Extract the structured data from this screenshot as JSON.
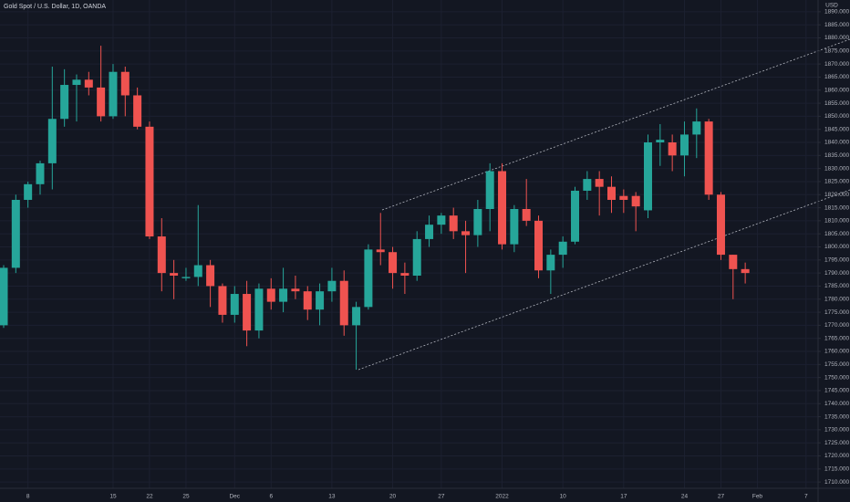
{
  "chart_data": {
    "type": "candlestick",
    "title": "Gold Spot / U.S. Dollar, 1D, OANDA",
    "currency": "USD",
    "up_color": "#26a69a",
    "down_color": "#ef5350",
    "grid": true,
    "categories": [
      null,
      null,
      "8",
      null,
      null,
      null,
      null,
      null,
      null,
      "15",
      null,
      null,
      "22",
      null,
      null,
      "25",
      null,
      null,
      null,
      "Dec",
      null,
      null,
      "6",
      null,
      null,
      null,
      null,
      "13",
      null,
      null,
      null,
      null,
      "20",
      null,
      null,
      null,
      "27",
      null,
      null,
      null,
      null,
      "2022",
      null,
      null,
      null,
      null,
      "10",
      null,
      null,
      null,
      null,
      "17",
      null,
      null,
      null,
      null,
      "24",
      null,
      null,
      "27",
      null,
      null,
      "Feb",
      null,
      null,
      null,
      "7"
    ],
    "open": [
      1770,
      1792,
      1818,
      1824,
      1832,
      1849,
      1862,
      1864,
      1861,
      1850,
      1867,
      1858,
      1846,
      1804,
      1790,
      1788,
      1788.5,
      1793,
      1785,
      1774,
      1782,
      1768,
      1784,
      1779,
      1784,
      1783,
      1776,
      1783,
      1787,
      1770,
      1777,
      1799,
      1798,
      1790,
      1789,
      1803,
      1808.5,
      1812,
      1806,
      1804.5,
      1814.5,
      1829,
      1801,
      1814.5,
      1810,
      1791,
      1797,
      1802,
      1821.5,
      1826,
      1823,
      1819.5,
      1819.5,
      1814,
      1840,
      1840,
      1835,
      1843,
      1848,
      1820,
      1797,
      1791.5,
      null,
      null,
      null,
      null,
      null
    ],
    "high": [
      1793,
      1820,
      1825,
      1833,
      1869,
      1868,
      1866,
      1867,
      1877,
      1870,
      1869,
      1861,
      1848,
      1811,
      1795,
      1792,
      1816,
      1795,
      1786,
      1785,
      1787,
      1786,
      1788,
      1792,
      1789,
      1785,
      1786,
      1792,
      1791,
      1779,
      1801,
      1813,
      1800,
      1794,
      1806,
      1812,
      1813,
      1815,
      1810,
      1818,
      1832,
      1832,
      1816,
      1826,
      1812,
      1799,
      1804,
      1823,
      1829,
      1829,
      1827,
      1822,
      1821,
      1843,
      1847,
      1843,
      1848,
      1853,
      1849,
      1821,
      1797,
      1794,
      null,
      null,
      null,
      null,
      null
    ],
    "low": [
      1769,
      1790,
      1815,
      1820,
      1822,
      1846,
      1848,
      1858,
      1848,
      1849,
      1850,
      1845,
      1803,
      1783,
      1780,
      1787,
      1785,
      1777,
      1771,
      1771,
      1762,
      1765,
      1776,
      1775,
      1780,
      1772,
      1770,
      1779,
      1766,
      1753,
      1776,
      1793,
      1784,
      1782,
      1787,
      1800,
      1805,
      1803,
      1790,
      1800,
      1806,
      1799,
      1798,
      1808,
      1788,
      1782,
      1792,
      1801,
      1818,
      1812,
      1813,
      1813,
      1806,
      1811,
      1831,
      1829,
      1827,
      1834,
      1818,
      1795,
      1780,
      1786,
      null,
      null,
      null,
      null,
      null
    ],
    "close": [
      1792,
      1818,
      1824,
      1832,
      1849,
      1862,
      1864,
      1861,
      1850,
      1867,
      1858,
      1846,
      1804,
      1790,
      1789,
      1788.5,
      1793,
      1785,
      1774,
      1782,
      1768,
      1784,
      1779,
      1784,
      1783,
      1776,
      1783,
      1787,
      1770,
      1777,
      1799,
      1798,
      1790,
      1789,
      1803,
      1808.5,
      1812,
      1806,
      1804.5,
      1814.5,
      1829,
      1801,
      1814.5,
      1810,
      1791,
      1797,
      1802,
      1821.5,
      1826,
      1823,
      1818,
      1818,
      1815.5,
      1840,
      1841,
      1835,
      1843,
      1848,
      1820,
      1797,
      1791.5,
      1790,
      null,
      null,
      null,
      null,
      null
    ],
    "ylim": [
      1707.6,
      1894.5
    ],
    "yticks": [
      {
        "value": 1710,
        "label": "1710.000"
      },
      {
        "value": 1715,
        "label": "1715.000"
      },
      {
        "value": 1720,
        "label": "1720.000"
      },
      {
        "value": 1725,
        "label": "1725.000"
      },
      {
        "value": 1730,
        "label": "1730.000"
      },
      {
        "value": 1735,
        "label": "1735.000"
      },
      {
        "value": 1740,
        "label": "1740.000"
      },
      {
        "value": 1745,
        "label": "1745.000"
      },
      {
        "value": 1750,
        "label": "1750.000"
      },
      {
        "value": 1755,
        "label": "1755.000"
      },
      {
        "value": 1760,
        "label": "1760.000"
      },
      {
        "value": 1765,
        "label": "1765.000"
      },
      {
        "value": 1770,
        "label": "1770.000"
      },
      {
        "value": 1775,
        "label": "1775.000"
      },
      {
        "value": 1780,
        "label": "1780.000"
      },
      {
        "value": 1785,
        "label": "1785.000"
      },
      {
        "value": 1790,
        "label": "1790.000"
      },
      {
        "value": 1795,
        "label": "1795.000"
      },
      {
        "value": 1800,
        "label": "1800.000"
      },
      {
        "value": 1805,
        "label": "1805.000"
      },
      {
        "value": 1810,
        "label": "1810.000"
      },
      {
        "value": 1815,
        "label": "1815.000"
      },
      {
        "value": 1820,
        "label": "1820.000"
      },
      {
        "value": 1825,
        "label": "1825.000"
      },
      {
        "value": 1830,
        "label": "1830.000"
      },
      {
        "value": 1835,
        "label": "1835.000"
      },
      {
        "value": 1840,
        "label": "1840.000"
      },
      {
        "value": 1845,
        "label": "1845.000"
      },
      {
        "value": 1850,
        "label": "1850.000"
      },
      {
        "value": 1855,
        "label": "1855.000"
      },
      {
        "value": 1860,
        "label": "1860.000"
      },
      {
        "value": 1865,
        "label": "1865.000"
      },
      {
        "value": 1870,
        "label": "1870.000"
      },
      {
        "value": 1875,
        "label": "1875.000"
      },
      {
        "value": 1880,
        "label": "1880.000"
      },
      {
        "value": 1885,
        "label": "1885.000"
      },
      {
        "value": 1890,
        "label": "1890.000"
      }
    ]
  }
}
